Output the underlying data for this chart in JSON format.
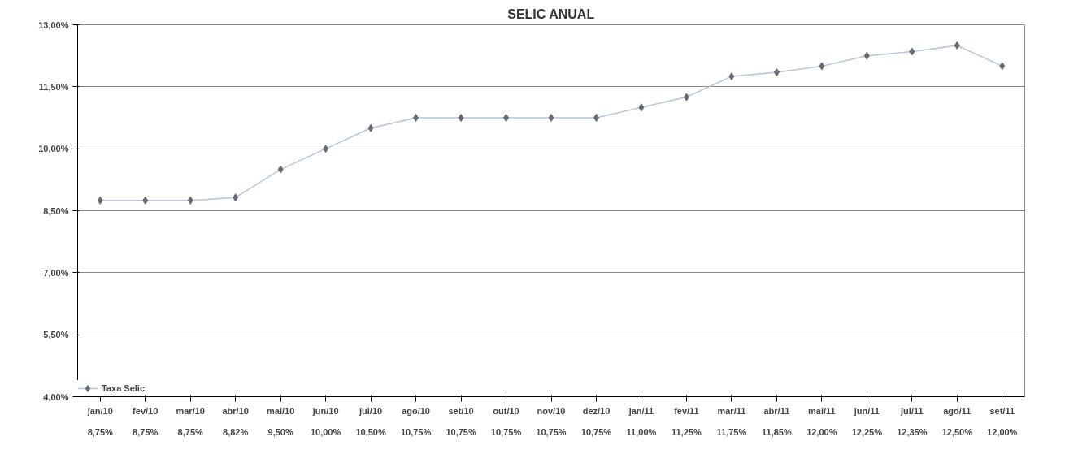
{
  "chart_data": {
    "type": "line",
    "title": "SELIC ANUAL",
    "categories": [
      "jan/10",
      "fev/10",
      "mar/10",
      "abr/10",
      "mai/10",
      "jun/10",
      "jul/10",
      "ago/10",
      "set/10",
      "out/10",
      "nov/10",
      "dez/10",
      "jan/11",
      "fev/11",
      "mar/11",
      "abr/11",
      "mai/11",
      "jun/11",
      "jul/11",
      "ago/11",
      "set/11"
    ],
    "series": [
      {
        "name": "Taxa Selic",
        "color": "#6a6a72",
        "values": [
          8.75,
          8.75,
          8.75,
          8.82,
          9.5,
          10.0,
          10.5,
          10.75,
          10.75,
          10.75,
          10.75,
          10.75,
          11.0,
          11.25,
          11.75,
          11.85,
          12.0,
          12.25,
          12.35,
          12.5,
          12.0
        ],
        "value_labels": [
          "8,75%",
          "8,75%",
          "8,75%",
          "8,82%",
          "9,50%",
          "10,00%",
          "10,50%",
          "10,75%",
          "10,75%",
          "10,75%",
          "10,75%",
          "10,75%",
          "11,00%",
          "11,25%",
          "11,75%",
          "11,85%",
          "12,00%",
          "12,25%",
          "12,35%",
          "12,50%",
          "12,00%"
        ]
      }
    ],
    "ylim": [
      4,
      13
    ],
    "yticks": [
      {
        "value": 4,
        "label": "4,00%"
      },
      {
        "value": 5.5,
        "label": "5,50%"
      },
      {
        "value": 7,
        "label": "7,00%"
      },
      {
        "value": 8.5,
        "label": "8,50%"
      },
      {
        "value": 10,
        "label": "10,00%"
      },
      {
        "value": 11.5,
        "label": "11,50%"
      },
      {
        "value": 13,
        "label": "13,00%"
      }
    ],
    "grid": "y",
    "marker": "diamond",
    "line_style": "solid",
    "legend": "bottom left"
  }
}
